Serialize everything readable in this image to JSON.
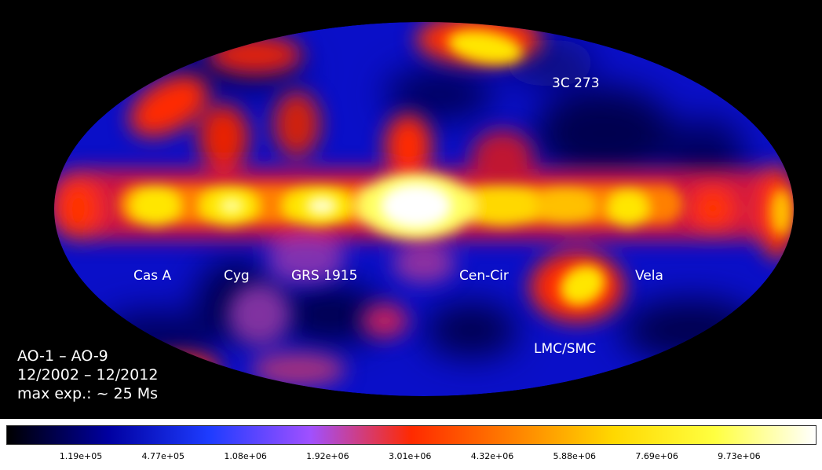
{
  "source_labels": [
    {
      "id": "3c273",
      "text": "3C 273"
    },
    {
      "id": "cas-a",
      "text": "Cas A"
    },
    {
      "id": "cyg",
      "text": "Cyg"
    },
    {
      "id": "grs1915",
      "text": "GRS 1915"
    },
    {
      "id": "cen-cir",
      "text": "Cen-Cir"
    },
    {
      "id": "vela",
      "text": "Vela"
    },
    {
      "id": "lmc-smc",
      "text": "LMC/SMC"
    }
  ],
  "info": {
    "line1": "AO-1 – AO-9",
    "line2": "12/2002 – 12/2012",
    "line3": "max exp.: ~ 25 Ms"
  },
  "colorbar": {
    "ticks": [
      "1.19e+05",
      "4.77e+05",
      "1.08e+06",
      "1.92e+06",
      "3.01e+06",
      "4.32e+06",
      "5.88e+06",
      "7.69e+06",
      "9.73e+06"
    ],
    "colors": [
      "#000000",
      "#0000a0",
      "#1e3cff",
      "#a050ff",
      "#ff2a00",
      "#ff8000",
      "#ffd800",
      "#ffff40",
      "#ffffff"
    ]
  }
}
